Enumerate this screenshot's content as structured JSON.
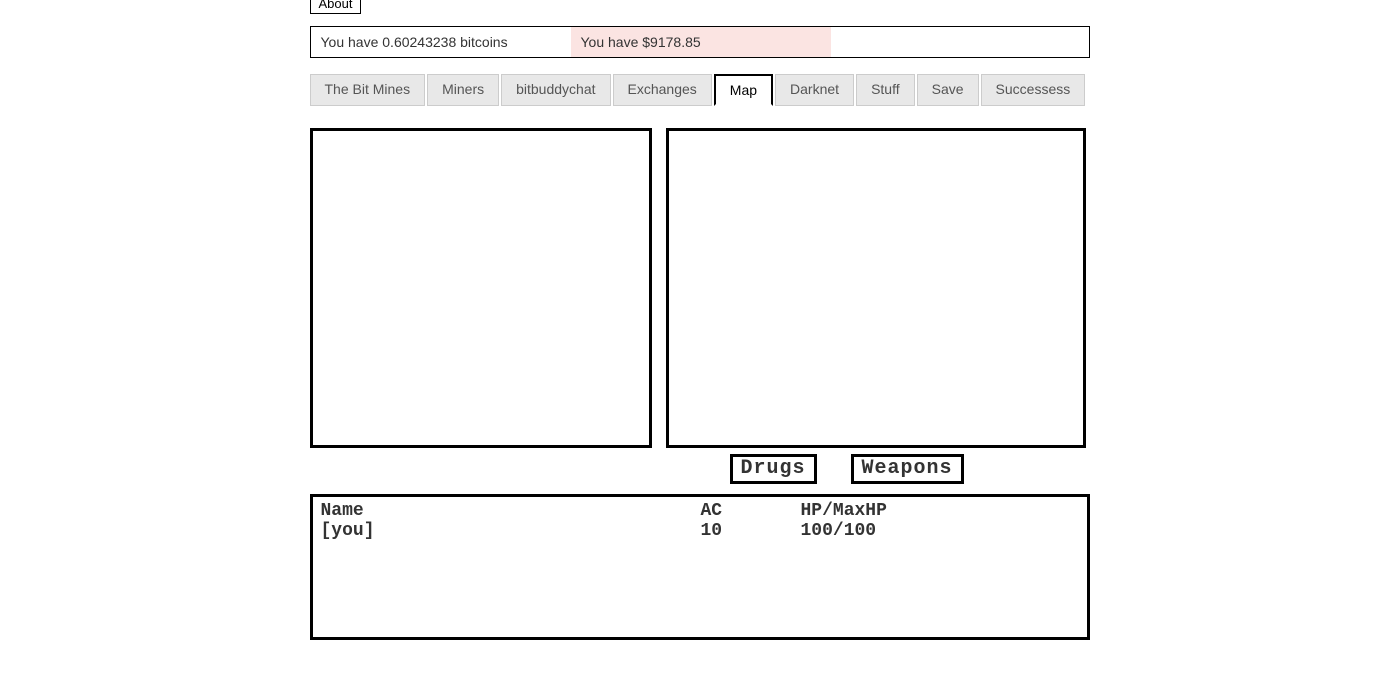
{
  "header": {
    "about_label": "About"
  },
  "status": {
    "bitcoin_text": "You have 0.60243238 bitcoins",
    "usd_text": "You have $9178.85",
    "bitcoin_bg": "#ffffff",
    "usd_bg": "#fbe4e2"
  },
  "tabs": {
    "items": [
      {
        "label": "The Bit Mines",
        "active": false
      },
      {
        "label": "Miners",
        "active": false
      },
      {
        "label": "bitbuddychat",
        "active": false
      },
      {
        "label": "Exchanges",
        "active": false
      },
      {
        "label": "Map",
        "active": true
      },
      {
        "label": "Darknet",
        "active": false
      },
      {
        "label": "Stuff",
        "active": false
      },
      {
        "label": "Save",
        "active": false
      },
      {
        "label": "Successess",
        "active": false
      }
    ]
  },
  "actions": {
    "drugs_label": "Drugs",
    "weapons_label": "Weapons"
  },
  "character_table": {
    "headers": {
      "name": "Name",
      "ac": "AC",
      "hp": "HP/MaxHP"
    },
    "rows": [
      {
        "name": "[you]",
        "ac": "10",
        "hp": "100/100"
      }
    ]
  },
  "styling": {
    "border_color": "#000000",
    "tab_inactive_bg": "#e8e8e8",
    "tab_active_bg": "#ffffff",
    "page_bg": "#ffffff",
    "pixel_font": "Courier New"
  }
}
